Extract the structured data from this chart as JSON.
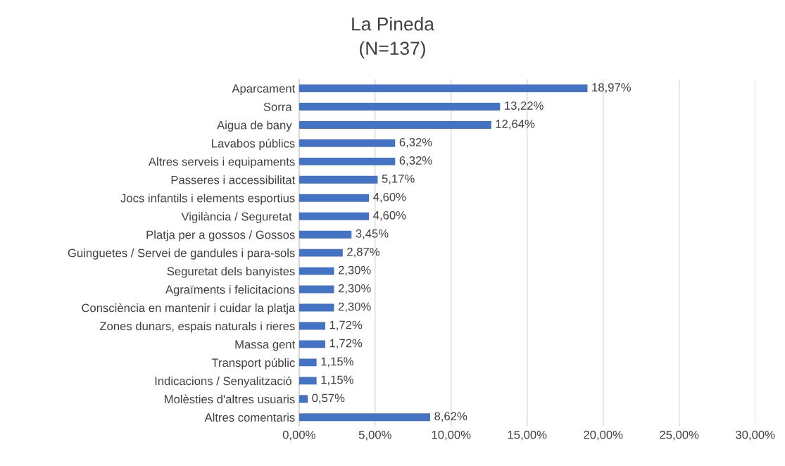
{
  "chart_data": {
    "type": "bar",
    "orientation": "horizontal",
    "title": "La Pineda",
    "subtitle": "(N=137)",
    "categories": [
      "Aparcament",
      "Sorra ",
      "Aigua de bany ",
      "Lavabos públics",
      "Altres serveis i equipaments",
      "Passeres i accessibilitat",
      "Jocs infantils i elements esportius",
      "Vigilància / Seguretat ",
      "Platja per a gossos / Gossos",
      "Guinguetes / Servei de gandules i para-sols",
      "Seguretat dels banyistes",
      "Agraïments i felicitacions",
      "Consciència en mantenir i cuidar la platja",
      "Zones dunars, espais naturals i rieres",
      "Massa gent",
      "Transport públic",
      "Indicacions / Senyalització ",
      "Molèsties d'altres usuaris",
      "Altres comentaris"
    ],
    "values": [
      18.97,
      13.22,
      12.64,
      6.32,
      6.32,
      5.17,
      4.6,
      4.6,
      3.45,
      2.87,
      2.3,
      2.3,
      2.3,
      1.72,
      1.72,
      1.15,
      1.15,
      0.57,
      8.62
    ],
    "value_labels": [
      "18,97%",
      "13,22%",
      "12,64%",
      "6,32%",
      "6,32%",
      "5,17%",
      "4,60%",
      "4,60%",
      "3,45%",
      "2,87%",
      "2,30%",
      "2,30%",
      "2,30%",
      "1,72%",
      "1,72%",
      "1,15%",
      "1,15%",
      "0,57%",
      "8,62%"
    ],
    "color": "#4472c4",
    "xlim": [
      0,
      30
    ],
    "xticks": [
      {
        "value": 0,
        "label": "0,00%"
      },
      {
        "value": 5,
        "label": "5,00%"
      },
      {
        "value": 10,
        "label": "10,00%"
      },
      {
        "value": 15,
        "label": "15,00%"
      },
      {
        "value": 20,
        "label": "20,00%"
      },
      {
        "value": 25,
        "label": "25,00%"
      },
      {
        "value": 30,
        "label": "30,00%"
      }
    ],
    "grid": "x",
    "legend": false
  }
}
